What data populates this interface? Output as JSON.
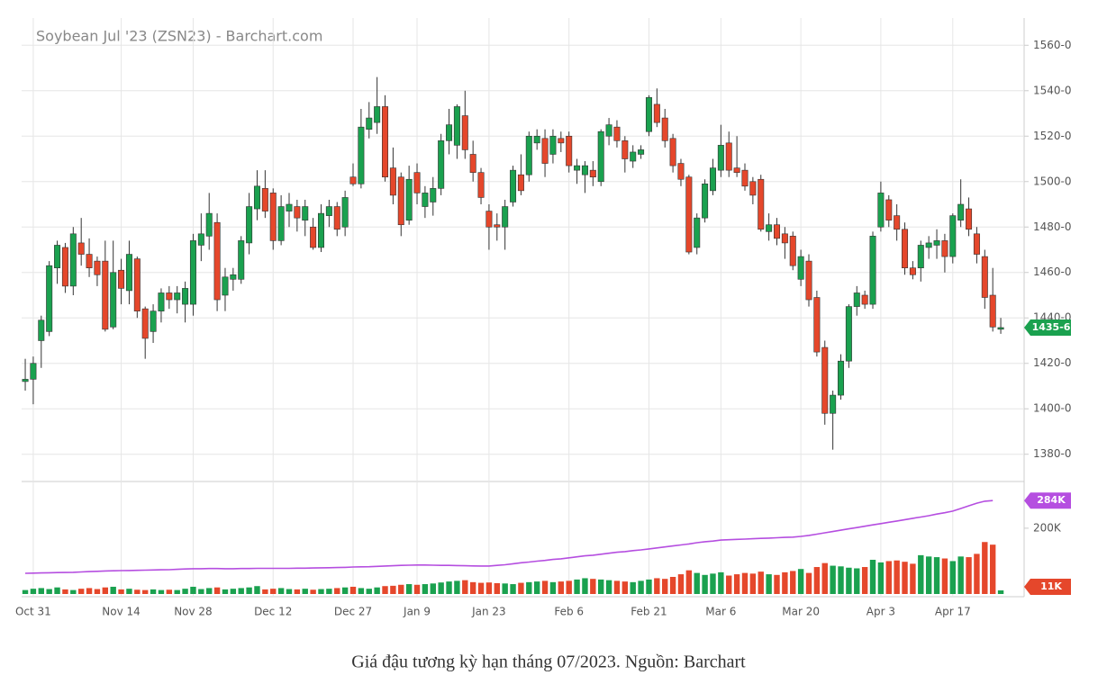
{
  "chart_data": {
    "type": "candlestick",
    "title": "Soybean Jul '23 (ZSN23) - Barchart.com",
    "caption": "Giá đậu tương kỳ hạn tháng 07/2023. Nguồn: Barchart",
    "up_color": "#1aa14f",
    "down_color": "#e5472b",
    "oi_color": "#b54ee0",
    "grid": true,
    "categories": [
      null,
      "Oct 31",
      null,
      null,
      null,
      null,
      null,
      null,
      null,
      null,
      null,
      null,
      "Nov 14",
      null,
      null,
      null,
      null,
      null,
      null,
      null,
      null,
      "Nov 28",
      null,
      null,
      null,
      null,
      null,
      null,
      null,
      null,
      null,
      "Dec 12",
      null,
      null,
      null,
      null,
      null,
      null,
      null,
      null,
      null,
      "Dec 27",
      null,
      null,
      null,
      null,
      null,
      null,
      null,
      "Jan 9",
      null,
      null,
      null,
      null,
      null,
      null,
      null,
      null,
      "Jan 23",
      null,
      null,
      null,
      null,
      null,
      null,
      null,
      null,
      null,
      "Feb 6",
      null,
      null,
      null,
      null,
      null,
      null,
      null,
      null,
      null,
      "Feb 21",
      null,
      null,
      null,
      null,
      null,
      null,
      null,
      null,
      "Mar 6",
      null,
      null,
      null,
      null,
      null,
      null,
      null,
      null,
      null,
      "Mar 20",
      null,
      null,
      null,
      null,
      null,
      null,
      null,
      null,
      null,
      "Apr 3",
      null,
      null,
      null,
      null,
      null,
      null,
      null,
      null,
      "Apr 17",
      null,
      null,
      null,
      null,
      null,
      null
    ],
    "ohlc": [
      [
        1412,
        1422,
        1408,
        1413
      ],
      [
        1413,
        1423,
        1402,
        1420
      ],
      [
        1430,
        1441,
        1418,
        1439
      ],
      [
        1434,
        1465,
        1432,
        1463
      ],
      [
        1462,
        1474,
        1455,
        1472
      ],
      [
        1471,
        1473,
        1451,
        1454
      ],
      [
        1454,
        1480,
        1450,
        1477
      ],
      [
        1473,
        1484,
        1463,
        1468
      ],
      [
        1468,
        1475,
        1458,
        1462
      ],
      [
        1465,
        1467,
        1454,
        1459
      ],
      [
        1465,
        1474,
        1434,
        1435
      ],
      [
        1436,
        1474,
        1435,
        1460
      ],
      [
        1461,
        1466,
        1446,
        1453
      ],
      [
        1452,
        1474,
        1446,
        1468
      ],
      [
        1466,
        1467,
        1440,
        1443
      ],
      [
        1444,
        1445,
        1422,
        1431
      ],
      [
        1434,
        1446,
        1429,
        1443
      ],
      [
        1443,
        1453,
        1438,
        1451
      ],
      [
        1451,
        1454,
        1444,
        1448
      ],
      [
        1448,
        1454,
        1442,
        1451
      ],
      [
        1446,
        1456,
        1438,
        1453
      ],
      [
        1446,
        1477,
        1441,
        1474
      ],
      [
        1472,
        1486,
        1465,
        1477
      ],
      [
        1476,
        1495,
        1470,
        1486
      ],
      [
        1482,
        1486,
        1443,
        1448
      ],
      [
        1450,
        1462,
        1443,
        1458
      ],
      [
        1457,
        1462,
        1452,
        1459
      ],
      [
        1457,
        1476,
        1455,
        1474
      ],
      [
        1473,
        1495,
        1468,
        1489
      ],
      [
        1488,
        1505,
        1483,
        1498
      ],
      [
        1497,
        1505,
        1484,
        1487
      ],
      [
        1495,
        1497,
        1470,
        1474
      ],
      [
        1474,
        1494,
        1472,
        1489
      ],
      [
        1487,
        1495,
        1480,
        1490
      ],
      [
        1489,
        1492,
        1478,
        1484
      ],
      [
        1483,
        1492,
        1476,
        1489
      ],
      [
        1480,
        1484,
        1470,
        1471
      ],
      [
        1471,
        1490,
        1469,
        1486
      ],
      [
        1485,
        1492,
        1480,
        1489
      ],
      [
        1489,
        1491,
        1476,
        1479
      ],
      [
        1480,
        1496,
        1476,
        1493
      ],
      [
        1502,
        1508,
        1498,
        1499
      ],
      [
        1499,
        1532,
        1497,
        1524
      ],
      [
        1523,
        1535,
        1519,
        1528
      ],
      [
        1526,
        1546,
        1521,
        1533
      ],
      [
        1533,
        1538,
        1500,
        1502
      ],
      [
        1506,
        1515,
        1490,
        1494
      ],
      [
        1502,
        1504,
        1476,
        1481
      ],
      [
        1483,
        1507,
        1481,
        1501
      ],
      [
        1504,
        1508,
        1490,
        1495
      ],
      [
        1489,
        1498,
        1484,
        1495
      ],
      [
        1491,
        1502,
        1485,
        1497
      ],
      [
        1497,
        1521,
        1494,
        1518
      ],
      [
        1518,
        1532,
        1512,
        1525
      ],
      [
        1516,
        1534,
        1510,
        1533
      ],
      [
        1529,
        1540,
        1510,
        1514
      ],
      [
        1512,
        1518,
        1500,
        1504
      ],
      [
        1504,
        1506,
        1490,
        1493
      ],
      [
        1487,
        1490,
        1470,
        1480
      ],
      [
        1481,
        1486,
        1474,
        1480
      ],
      [
        1480,
        1492,
        1470,
        1489
      ],
      [
        1491,
        1507,
        1489,
        1505
      ],
      [
        1503,
        1512,
        1494,
        1496
      ],
      [
        1503,
        1522,
        1500,
        1520
      ],
      [
        1517,
        1523,
        1514,
        1520
      ],
      [
        1519,
        1523,
        1502,
        1508
      ],
      [
        1512,
        1523,
        1508,
        1520
      ],
      [
        1519,
        1522,
        1513,
        1517
      ],
      [
        1520,
        1522,
        1504,
        1507
      ],
      [
        1505,
        1510,
        1499,
        1507
      ],
      [
        1503,
        1509,
        1495,
        1507
      ],
      [
        1505,
        1509,
        1498,
        1502
      ],
      [
        1500,
        1523,
        1498,
        1522
      ],
      [
        1520,
        1528,
        1516,
        1525
      ],
      [
        1524,
        1527,
        1515,
        1518
      ],
      [
        1518,
        1520,
        1504,
        1510
      ],
      [
        1509,
        1516,
        1506,
        1513
      ],
      [
        1512,
        1516,
        1510,
        1514
      ],
      [
        1522,
        1538,
        1520,
        1537
      ],
      [
        1534,
        1541,
        1524,
        1526
      ],
      [
        1528,
        1532,
        1515,
        1518
      ],
      [
        1519,
        1521,
        1504,
        1507
      ],
      [
        1508,
        1510,
        1498,
        1501
      ],
      [
        1502,
        1503,
        1468,
        1469
      ],
      [
        1471,
        1486,
        1468,
        1484
      ],
      [
        1484,
        1501,
        1482,
        1499
      ],
      [
        1496,
        1510,
        1494,
        1506
      ],
      [
        1505,
        1525,
        1502,
        1516
      ],
      [
        1517,
        1522,
        1502,
        1505
      ],
      [
        1506,
        1520,
        1502,
        1504
      ],
      [
        1505,
        1508,
        1496,
        1498
      ],
      [
        1500,
        1502,
        1490,
        1494
      ],
      [
        1501,
        1503,
        1478,
        1479
      ],
      [
        1478,
        1486,
        1474,
        1481
      ],
      [
        1481,
        1484,
        1472,
        1475
      ],
      [
        1477,
        1480,
        1466,
        1473
      ],
      [
        1476,
        1478,
        1461,
        1463
      ],
      [
        1457,
        1470,
        1454,
        1467
      ],
      [
        1465,
        1468,
        1445,
        1448
      ],
      [
        1449,
        1452,
        1423,
        1425
      ],
      [
        1427,
        1430,
        1393,
        1398
      ],
      [
        1398,
        1408,
        1382,
        1406
      ],
      [
        1406,
        1424,
        1404,
        1421
      ],
      [
        1421,
        1446,
        1418,
        1445
      ],
      [
        1445,
        1454,
        1441,
        1451
      ],
      [
        1450,
        1452,
        1444,
        1446
      ],
      [
        1446,
        1478,
        1444,
        1476
      ],
      [
        1480,
        1500,
        1478,
        1495
      ],
      [
        1492,
        1494,
        1480,
        1483
      ],
      [
        1485,
        1490,
        1474,
        1479
      ],
      [
        1479,
        1482,
        1459,
        1462
      ],
      [
        1462,
        1465,
        1457,
        1459
      ],
      [
        1462,
        1474,
        1456,
        1472
      ],
      [
        1471,
        1476,
        1466,
        1473
      ],
      [
        1472,
        1479,
        1466,
        1474
      ],
      [
        1474,
        1477,
        1460,
        1467
      ],
      [
        1467,
        1486,
        1464,
        1485
      ],
      [
        1483,
        1501,
        1480,
        1490
      ],
      [
        1488,
        1493,
        1476,
        1479
      ],
      [
        1477,
        1480,
        1464,
        1468
      ],
      [
        1467,
        1470,
        1444,
        1449
      ],
      [
        1450,
        1462,
        1434,
        1436
      ],
      [
        1435,
        1440,
        1433,
        1435.75
      ]
    ],
    "volume": [
      12000,
      16000,
      18000,
      15000,
      20000,
      14000,
      12000,
      16000,
      18000,
      15000,
      20000,
      22000,
      14000,
      16000,
      13000,
      12000,
      14000,
      12000,
      13000,
      12000,
      16000,
      22000,
      15000,
      18000,
      20000,
      14000,
      16000,
      18000,
      20000,
      24000,
      14000,
      16000,
      18000,
      15000,
      14000,
      16000,
      13000,
      15000,
      16000,
      18000,
      20000,
      22000,
      18000,
      16000,
      20000,
      24000,
      25000,
      28000,
      30000,
      28000,
      30000,
      32000,
      35000,
      38000,
      40000,
      42000,
      36000,
      34000,
      35000,
      33000,
      32000,
      30000,
      34000,
      36000,
      38000,
      40000,
      36000,
      38000,
      40000,
      44000,
      48000,
      46000,
      44000,
      42000,
      40000,
      38000,
      36000,
      40000,
      44000,
      48000,
      46000,
      52000,
      60000,
      72000,
      64000,
      58000,
      62000,
      66000,
      56000,
      60000,
      64000,
      62000,
      68000,
      60000,
      58000,
      66000,
      70000,
      76000,
      64000,
      82000,
      94000,
      86000,
      84000,
      80000,
      78000,
      82000,
      104000,
      96000,
      100000,
      102000,
      98000,
      92000,
      118000,
      114000,
      112000,
      108000,
      100000,
      114000,
      112000,
      122000,
      158000,
      150000,
      11000
    ],
    "open_interest": [
      63000,
      63500,
      64000,
      64500,
      65000,
      65500,
      66000,
      67000,
      68000,
      69000,
      70000,
      70500,
      71000,
      71500,
      72000,
      72500,
      73000,
      73500,
      74000,
      75000,
      76000,
      77000,
      77000,
      77500,
      77500,
      77000,
      77000,
      77500,
      77500,
      78000,
      78000,
      78000,
      78000,
      78000,
      78500,
      78500,
      79000,
      79500,
      80000,
      80500,
      81000,
      82000,
      82500,
      83000,
      84000,
      85000,
      86000,
      87000,
      87500,
      88000,
      88000,
      87500,
      87000,
      87000,
      86500,
      86000,
      85500,
      85000,
      85000,
      87000,
      89000,
      92000,
      95000,
      97000,
      100000,
      102000,
      105000,
      107000,
      110000,
      113000,
      116000,
      118000,
      121000,
      124000,
      127000,
      129000,
      132000,
      134000,
      137000,
      140000,
      143000,
      146000,
      149000,
      152000,
      156000,
      159000,
      161000,
      164000,
      165000,
      166000,
      167000,
      168000,
      169000,
      170000,
      171000,
      172000,
      173000,
      175000,
      178000,
      182000,
      186000,
      190000,
      194000,
      198000,
      202000,
      206000,
      210000,
      214000,
      218000,
      222000,
      226000,
      230000,
      234000,
      238000,
      243000,
      247000,
      252000,
      260000,
      268000,
      276000,
      282000,
      284000,
      null
    ],
    "last_price": {
      "value": 1435.75,
      "label": "1435-6"
    },
    "oi_last_label": {
      "value": 284000,
      "label": "284K"
    },
    "volume_last_label": {
      "value": 11000,
      "label": "11K"
    },
    "ylim": [
      1368,
      1572
    ],
    "yticks": [
      {
        "value": 1380,
        "label": "1380-0"
      },
      {
        "value": 1400,
        "label": "1400-0"
      },
      {
        "value": 1420,
        "label": "1420-0"
      },
      {
        "value": 1440,
        "label": "1440-0"
      },
      {
        "value": 1460,
        "label": "1460-0"
      },
      {
        "value": 1480,
        "label": "1480-0"
      },
      {
        "value": 1500,
        "label": "1500-0"
      },
      {
        "value": 1520,
        "label": "1520-0"
      },
      {
        "value": 1540,
        "label": "1540-0"
      },
      {
        "value": 1560,
        "label": "1560-0"
      }
    ],
    "y2lim": [
      0,
      342000
    ],
    "y2ticks": [
      {
        "value": 200000,
        "label": "200K"
      }
    ]
  }
}
